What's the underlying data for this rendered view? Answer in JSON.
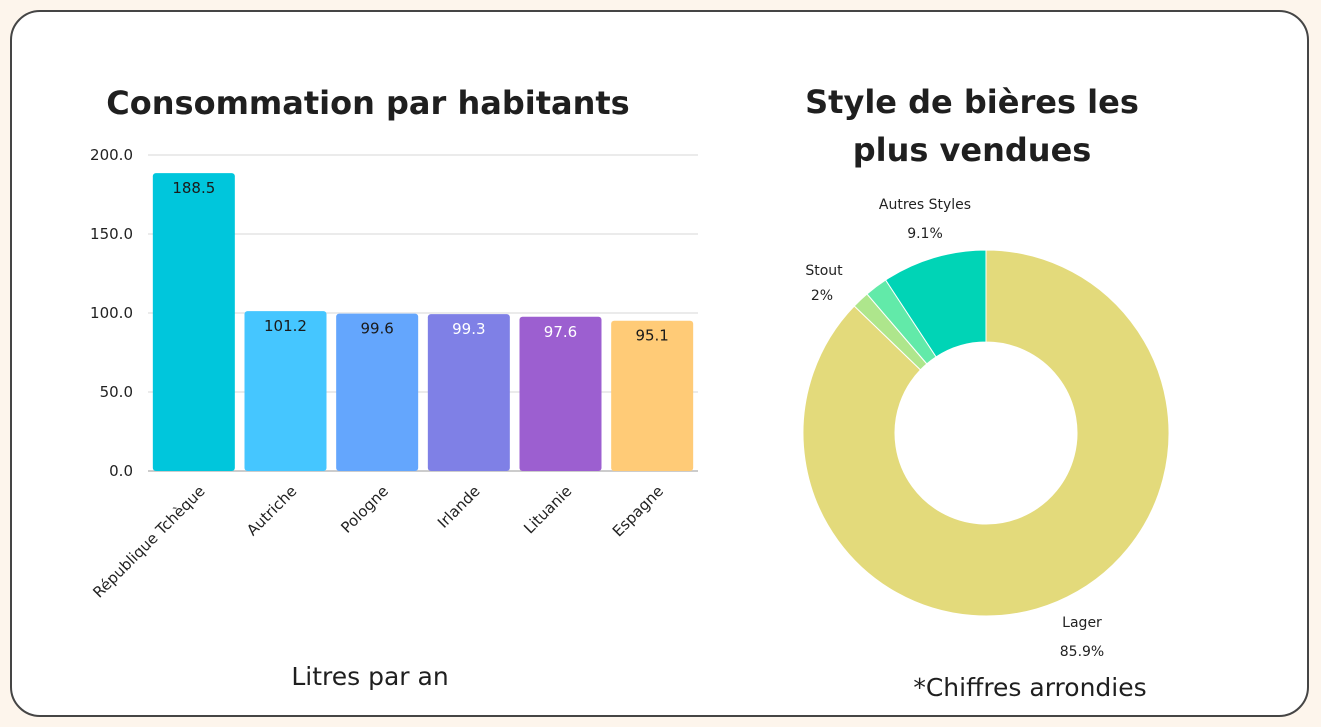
{
  "chart_data": [
    {
      "type": "bar",
      "title": "Consommation par habitants",
      "xlabel": "Litres par an",
      "ylabel": "",
      "ylim": [
        0,
        200
      ],
      "yticks": [
        "200.0",
        "150.0",
        "100.0",
        "50.0",
        "0.0"
      ],
      "grid": true,
      "categories": [
        "République Tchèque",
        "Autriche",
        "Pologne",
        "Irlande",
        "Lituanie",
        "Espagne"
      ],
      "values": [
        188.5,
        101.2,
        99.6,
        99.3,
        97.6,
        95.1
      ],
      "value_labels": [
        "188.5",
        "101.2",
        "99.6",
        "99.3",
        "97.6",
        "95.1"
      ],
      "colors": [
        "#00c6dc",
        "#45c6ff",
        "#64a6fd",
        "#7f80e6",
        "#9c5fd0",
        "#ffcb77"
      ],
      "label_colors": [
        "#1a1a1a",
        "#1a1a1a",
        "#1a1a1a",
        "#ffffff",
        "#ffffff",
        "#1a1a1a"
      ]
    },
    {
      "type": "pie",
      "variant": "donut",
      "title": [
        "Style de bières les",
        "plus vendues"
      ],
      "slices": [
        {
          "label": "Lager",
          "value": 85.9,
          "value_label": "85.9%",
          "color": "#e3da7b"
        },
        {
          "label": "",
          "value": 1.5,
          "value_label": "",
          "color": "#aee68c"
        },
        {
          "label": "Stout",
          "value": 2,
          "value_label": "2%",
          "color": "#62eaa9"
        },
        {
          "label": "Autres Styles",
          "value": 9.1,
          "value_label": "9.1%",
          "color": "#00d4b6"
        }
      ],
      "note": "*Chiffres arrondies"
    }
  ]
}
